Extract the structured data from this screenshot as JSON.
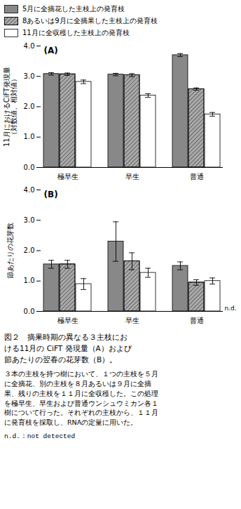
{
  "chart_data": [
    {
      "type": "bar",
      "title": "(A)",
      "ylabel": "11月におけるCiFT発現量\n（対数値、相対値）",
      "categories": [
        "極早生",
        "早生",
        "普通"
      ],
      "series": [
        {
          "name": "5月に全摘花した主枝上の発育枝",
          "color": "#888888",
          "values": [
            3.08,
            3.06,
            3.7
          ],
          "errors": [
            0.04,
            0.04,
            0.05
          ]
        },
        {
          "name": "8あるいは9月に全摘果した主枝上の発育枝",
          "color": "#aaaaaa",
          "values": [
            3.07,
            3.04,
            2.58
          ],
          "errors": [
            0.04,
            0.05,
            0.04
          ]
        },
        {
          "name": "11月に全収穫した主枝上の発育枝",
          "color": "#ffffff",
          "values": [
            2.82,
            2.37,
            1.75
          ],
          "errors": [
            0.06,
            0.06,
            0.06
          ]
        }
      ],
      "ylim": [
        0,
        4
      ],
      "yticks": [
        0,
        1,
        2,
        3,
        4
      ],
      "legend": "top"
    },
    {
      "type": "bar",
      "title": "(B)",
      "ylabel": "節あたりの花芽数",
      "categories": [
        "極早生",
        "早生",
        "普通"
      ],
      "series": [
        {
          "name": "5月に全摘花した主枝上の発育枝",
          "color": "#888888",
          "values": [
            1.55,
            2.3,
            1.5
          ],
          "errors": [
            0.13,
            0.65,
            0.13
          ]
        },
        {
          "name": "8あるいは9月に全摘果した主枝上の発育枝",
          "color": "#aaaaaa",
          "values": [
            1.55,
            1.65,
            0.95
          ],
          "errors": [
            0.13,
            0.28,
            0.09
          ]
        },
        {
          "name": "11月に全収穫した主枝上の発育枝",
          "color": "#ffffff",
          "values": [
            0.9,
            1.27,
            1.0
          ],
          "errors": [
            0.18,
            0.15,
            0.1
          ]
        }
      ],
      "ylim": [
        0,
        4
      ],
      "yticks": [
        0,
        1,
        2,
        3,
        4
      ],
      "annotations": [
        "n.d."
      ],
      "caption": [
        "図２　摘果時期の異なる３主枝にお\nける11月の CiFT 発現量（A）および\n節あたりの翌春の花芽数（B）。",
        "３本の主枝を持つ樹において、１つの主枝を５月\nに全摘花、別の主枝を８月あるいは９月に全摘\n果、残りの主枝を１１月に全収穫した。この処理\nを極早生、早生および普通ウンシュウミカン各１\n樹について行った。それぞれの主枝から、１１月\nに発育枝を採取し、RNAの定量に用いた。",
        "n.d.：not detected"
      ]
    }
  ]
}
